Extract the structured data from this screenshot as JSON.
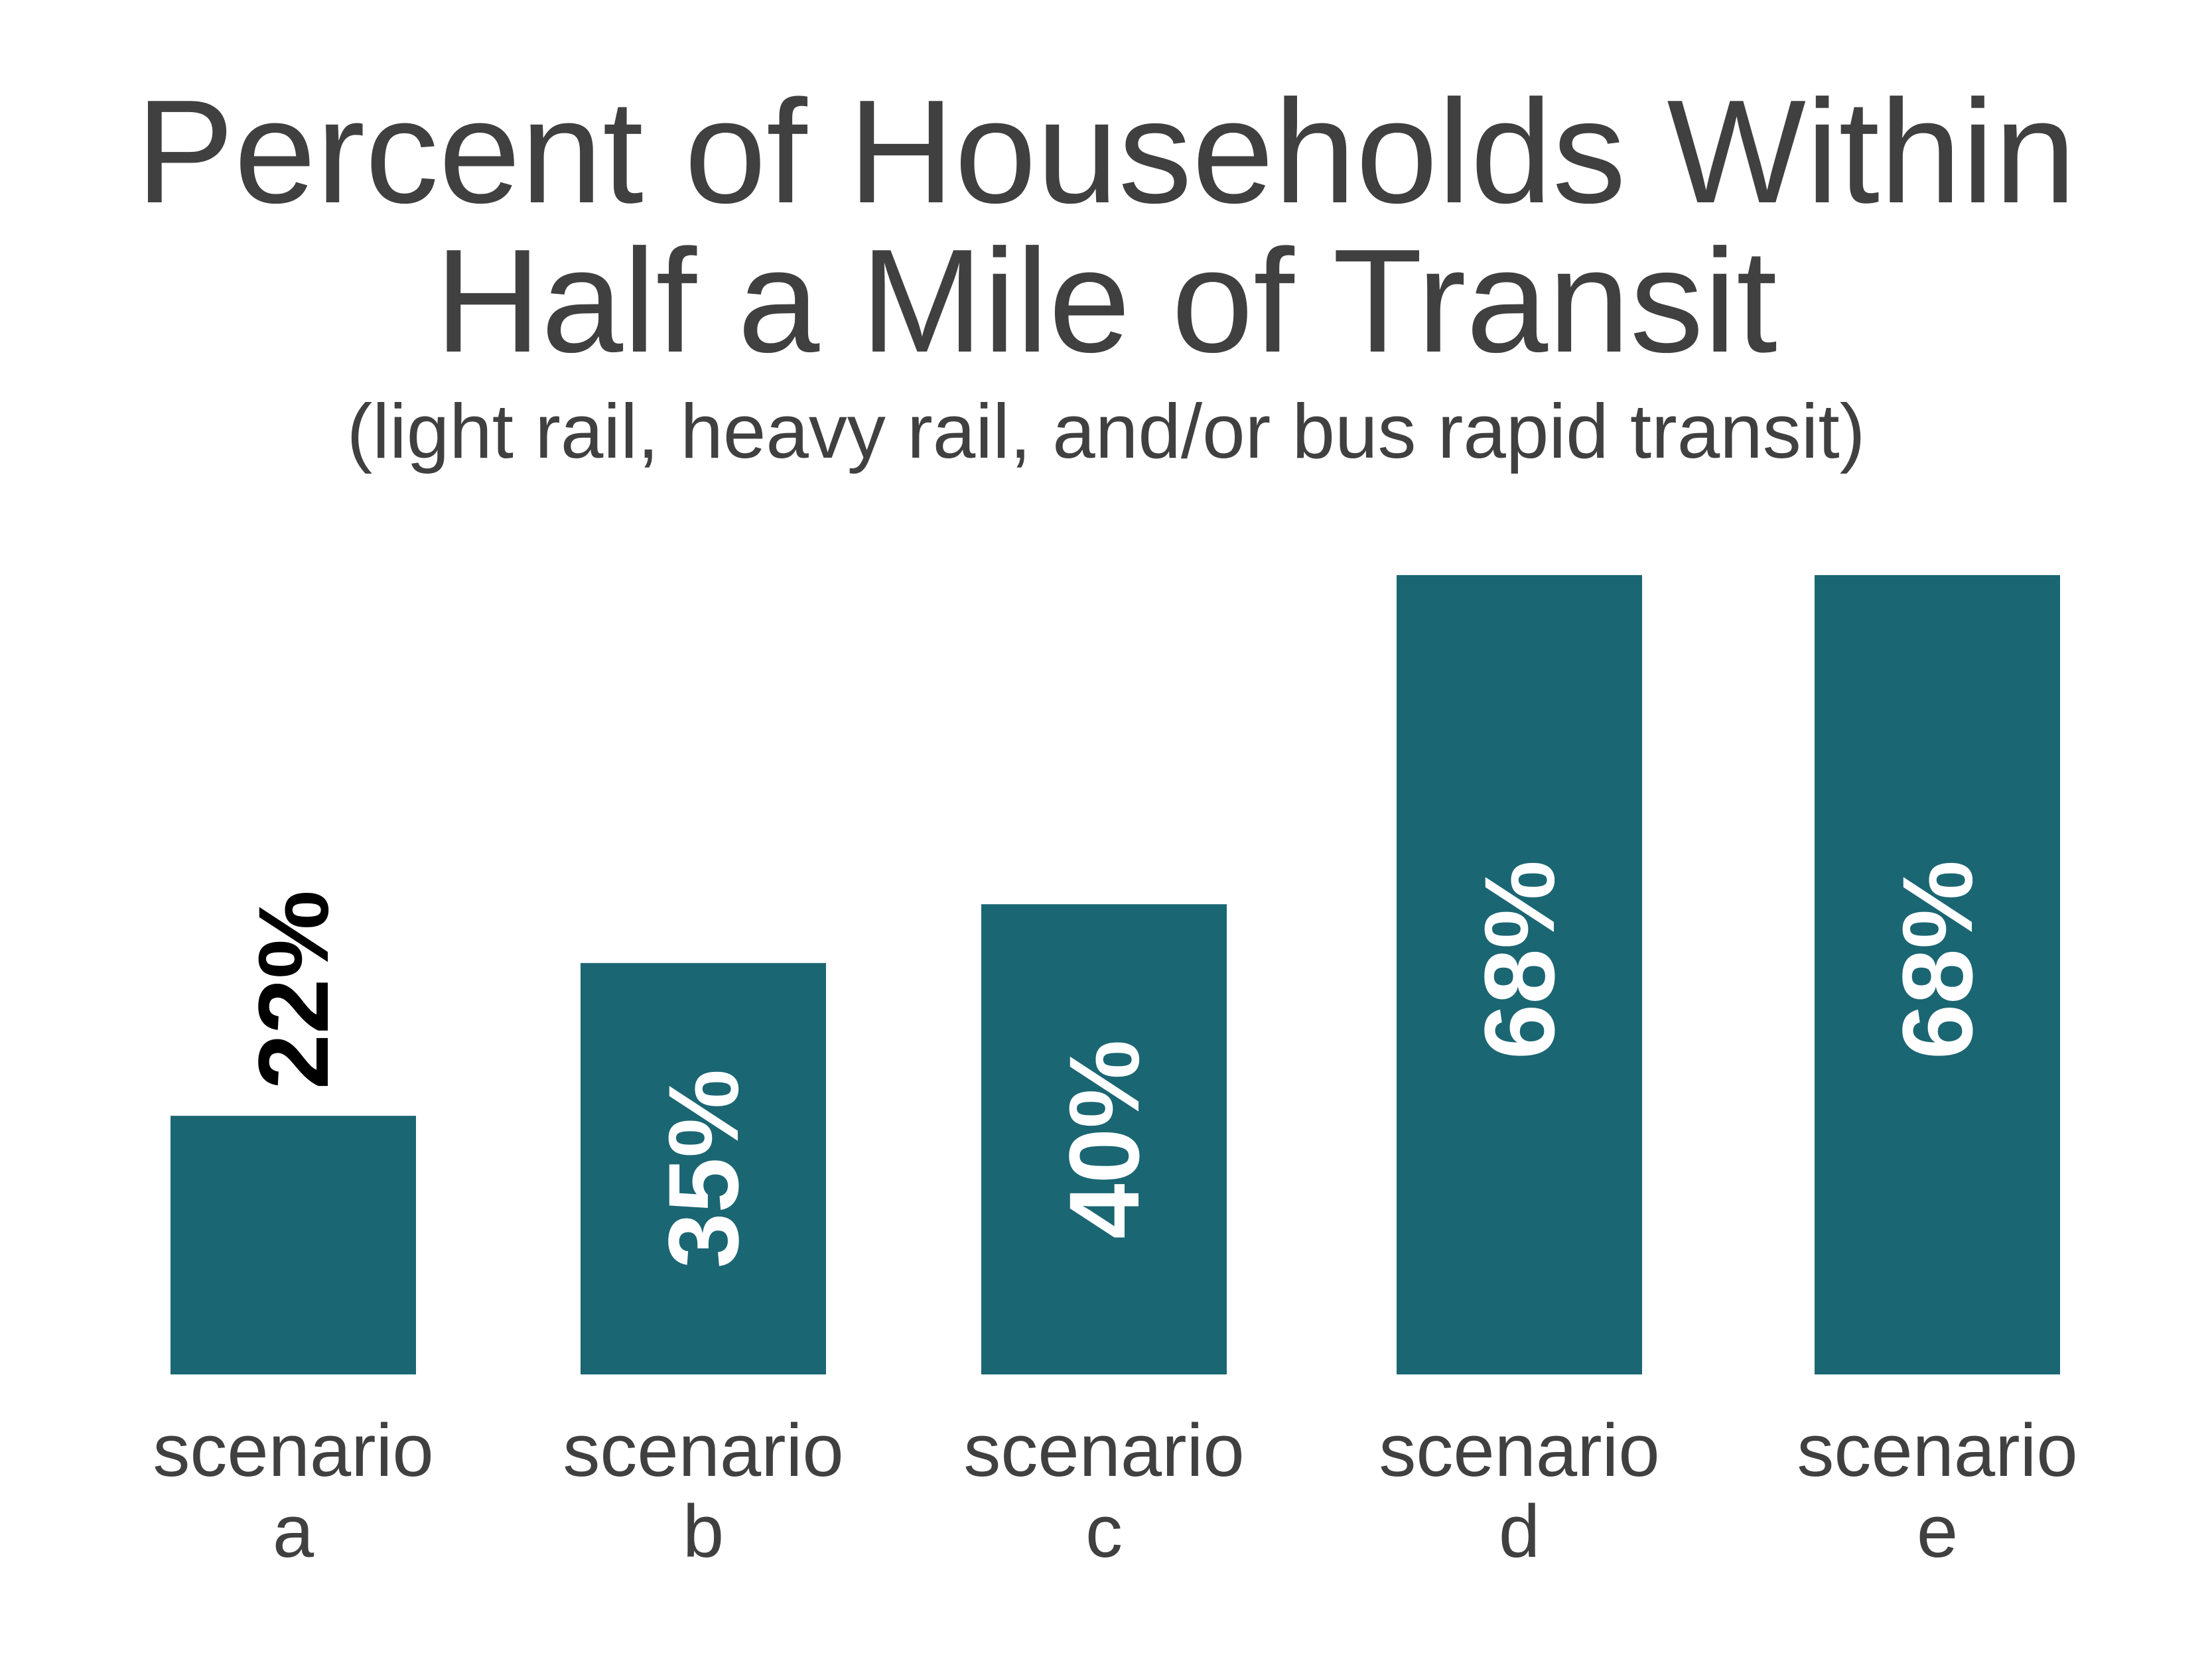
{
  "chart_data": {
    "type": "bar",
    "title": [
      "Percent of Households Within",
      "Half a Mile of Transit"
    ],
    "subtitle": "(light rail, heavy rail, and/or bus rapid transit)",
    "categories": [
      [
        "scenario",
        "a"
      ],
      [
        "scenario",
        "b"
      ],
      [
        "scenario",
        "c"
      ],
      [
        "scenario",
        "d"
      ],
      [
        "scenario",
        "e"
      ]
    ],
    "values": [
      22,
      35,
      40,
      68,
      68
    ],
    "data_labels": [
      "22%",
      "35%",
      "40%",
      "68%",
      "68%"
    ],
    "ylim": [
      0,
      68
    ],
    "grid": false,
    "legend": "none",
    "colors": {
      "bar": "#1b6673",
      "label_inside": "#ffffff",
      "label_outside": "#000000",
      "text": "#404041"
    }
  }
}
